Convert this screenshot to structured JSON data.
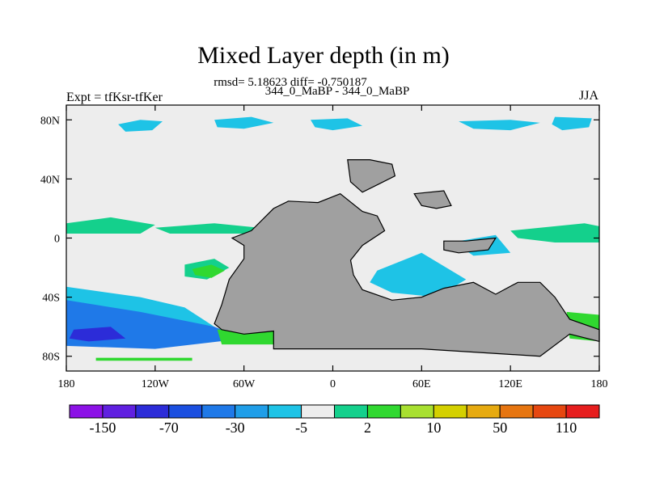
{
  "chart_data": {
    "type": "heatmap",
    "title": "Mixed Layer depth (in m)",
    "stats": "rmsd= 5.18623 diff= -0.750187",
    "subtitle": "344_0_MaBP - 344_0_MaBP",
    "left_label": "Expt = tfKsr-tfKer",
    "right_label": "JJA",
    "x_range": [
      -180,
      180
    ],
    "y_range": [
      -90,
      90
    ],
    "x_ticks": [
      {
        "value": -180,
        "label": "180"
      },
      {
        "value": -120,
        "label": "120W"
      },
      {
        "value": -60,
        "label": "60W"
      },
      {
        "value": 0,
        "label": "0"
      },
      {
        "value": 60,
        "label": "60E"
      },
      {
        "value": 120,
        "label": "120E"
      },
      {
        "value": 180,
        "label": "180"
      }
    ],
    "y_ticks": [
      {
        "value": 80,
        "label": "80N"
      },
      {
        "value": 40,
        "label": "40N"
      },
      {
        "value": 0,
        "label": "0"
      },
      {
        "value": -40,
        "label": "40S"
      },
      {
        "value": -80,
        "label": "80S"
      }
    ],
    "colorbar": {
      "colors": [
        "#8c12e6",
        "#6020e0",
        "#2c2cd8",
        "#1b4fe0",
        "#1f79e8",
        "#209ee8",
        "#1ec3e6",
        "#ededed",
        "#14d08c",
        "#30d830",
        "#a8e030",
        "#d4d000",
        "#e6aa10",
        "#e67510",
        "#e64710",
        "#e61e1e"
      ],
      "labels": [
        {
          "boundary": 1,
          "text": "-150"
        },
        {
          "boundary": 3,
          "text": "-70"
        },
        {
          "boundary": 5,
          "text": "-30"
        },
        {
          "boundary": 7,
          "text": "-5"
        },
        {
          "boundary": 9,
          "text": "2"
        },
        {
          "boundary": 11,
          "text": "10"
        },
        {
          "boundary": 13,
          "text": "50"
        },
        {
          "boundary": 15,
          "text": "110"
        }
      ]
    },
    "background_value": "2",
    "land_color": "#a0a0a0",
    "regions": [
      {
        "value": "-5",
        "color": "#1ec3e6",
        "lonlat": [
          [
            -145,
            77
          ],
          [
            -130,
            80
          ],
          [
            -115,
            79
          ],
          [
            -122,
            73
          ],
          [
            -140,
            72
          ]
        ]
      },
      {
        "value": "-5",
        "color": "#1ec3e6",
        "lonlat": [
          [
            -80,
            80
          ],
          [
            -55,
            82
          ],
          [
            -40,
            78
          ],
          [
            -60,
            74
          ],
          [
            -78,
            75
          ]
        ]
      },
      {
        "value": "-5",
        "color": "#1ec3e6",
        "lonlat": [
          [
            -15,
            80
          ],
          [
            10,
            81
          ],
          [
            20,
            76
          ],
          [
            0,
            73
          ],
          [
            -12,
            75
          ]
        ]
      },
      {
        "value": "-5",
        "color": "#1ec3e6",
        "lonlat": [
          [
            85,
            79
          ],
          [
            120,
            80
          ],
          [
            140,
            78
          ],
          [
            120,
            73
          ],
          [
            95,
            74
          ]
        ]
      },
      {
        "value": "-5",
        "color": "#1ec3e6",
        "lonlat": [
          [
            150,
            82
          ],
          [
            175,
            81
          ],
          [
            173,
            75
          ],
          [
            155,
            73
          ],
          [
            148,
            77
          ]
        ]
      },
      {
        "value": "2",
        "color": "#14d08c",
        "lonlat": [
          [
            -180,
            10
          ],
          [
            -150,
            14
          ],
          [
            -120,
            9
          ],
          [
            -130,
            3
          ],
          [
            -180,
            3
          ]
        ]
      },
      {
        "value": "2",
        "color": "#14d08c",
        "lonlat": [
          [
            -120,
            7
          ],
          [
            -80,
            10
          ],
          [
            -40,
            6
          ],
          [
            -60,
            3
          ],
          [
            -110,
            3
          ]
        ]
      },
      {
        "value": "2",
        "color": "#14d08c",
        "lonlat": [
          [
            120,
            5
          ],
          [
            170,
            10
          ],
          [
            180,
            8
          ],
          [
            180,
            -3
          ],
          [
            150,
            -3
          ],
          [
            125,
            0
          ]
        ]
      },
      {
        "value": "2",
        "color": "#14d08c",
        "lonlat": [
          [
            -100,
            -18
          ],
          [
            -80,
            -14
          ],
          [
            -70,
            -20
          ],
          [
            -85,
            -28
          ],
          [
            -100,
            -26
          ]
        ]
      },
      {
        "value": "10",
        "color": "#30d830",
        "lonlat": [
          [
            -95,
            -21
          ],
          [
            -82,
            -18
          ],
          [
            -73,
            -22
          ],
          [
            -82,
            -27
          ],
          [
            -93,
            -25
          ]
        ]
      },
      {
        "value": "-5",
        "color": "#1ec3e6",
        "lonlat": [
          [
            85,
            -2
          ],
          [
            110,
            2
          ],
          [
            120,
            -10
          ],
          [
            95,
            -12
          ],
          [
            85,
            -5
          ]
        ]
      },
      {
        "value": "-5",
        "color": "#1ec3e6",
        "lonlat": [
          [
            30,
            -22
          ],
          [
            60,
            -10
          ],
          [
            90,
            -28
          ],
          [
            70,
            -40
          ],
          [
            40,
            -37
          ],
          [
            25,
            -30
          ]
        ]
      },
      {
        "value": "-30",
        "color": "#1f79e8",
        "lonlat": [
          [
            -180,
            -40
          ],
          [
            -130,
            -45
          ],
          [
            -80,
            -60
          ],
          [
            -60,
            -68
          ],
          [
            -120,
            -75
          ],
          [
            -180,
            -73
          ]
        ]
      },
      {
        "value": "-5",
        "color": "#1ec3e6",
        "lonlat": [
          [
            -180,
            -33
          ],
          [
            -130,
            -40
          ],
          [
            -100,
            -47
          ],
          [
            -80,
            -60
          ],
          [
            -130,
            -50
          ],
          [
            -180,
            -42
          ]
        ]
      },
      {
        "value": "-70",
        "color": "#2c2cd8",
        "lonlat": [
          [
            -175,
            -62
          ],
          [
            -150,
            -60
          ],
          [
            -140,
            -68
          ],
          [
            -165,
            -70
          ],
          [
            -178,
            -68
          ]
        ]
      },
      {
        "value": "10",
        "color": "#30d830",
        "lonlat": [
          [
            -78,
            -62
          ],
          [
            -30,
            -62
          ],
          [
            -30,
            -72
          ],
          [
            -75,
            -72
          ]
        ]
      },
      {
        "value": "10",
        "color": "#30d830",
        "lonlat": [
          [
            158,
            -50
          ],
          [
            180,
            -52
          ],
          [
            180,
            -70
          ],
          [
            160,
            -68
          ]
        ]
      },
      {
        "value": "10",
        "color": "#30d830",
        "lonlat": [
          [
            -160,
            -83
          ],
          [
            -95,
            -83
          ],
          [
            -95,
            -81
          ],
          [
            -160,
            -81
          ]
        ]
      }
    ],
    "land": [
      {
        "name": "south-america-africa",
        "lonlat": [
          [
            -80,
            -58
          ],
          [
            -75,
            -45
          ],
          [
            -70,
            -28
          ],
          [
            -60,
            -14
          ],
          [
            -60,
            -5
          ],
          [
            -68,
            0
          ],
          [
            -55,
            5
          ],
          [
            -40,
            20
          ],
          [
            -30,
            25
          ],
          [
            -10,
            24
          ],
          [
            5,
            30
          ],
          [
            20,
            18
          ],
          [
            30,
            15
          ],
          [
            35,
            5
          ],
          [
            20,
            -5
          ],
          [
            12,
            -15
          ],
          [
            14,
            -25
          ],
          [
            20,
            -35
          ],
          [
            40,
            -42
          ],
          [
            60,
            -40
          ],
          [
            75,
            -34
          ],
          [
            95,
            -30
          ],
          [
            110,
            -38
          ],
          [
            125,
            -30
          ],
          [
            140,
            -30
          ],
          [
            150,
            -40
          ],
          [
            160,
            -55
          ],
          [
            180,
            -62
          ],
          [
            180,
            -70
          ],
          [
            160,
            -65
          ],
          [
            140,
            -80
          ],
          [
            60,
            -75
          ],
          [
            -40,
            -75
          ],
          [
            -40,
            -63
          ],
          [
            -60,
            -65
          ],
          [
            -75,
            -62
          ]
        ]
      },
      {
        "name": "northern-block",
        "lonlat": [
          [
            10,
            53
          ],
          [
            25,
            53
          ],
          [
            40,
            50
          ],
          [
            42,
            42
          ],
          [
            30,
            36
          ],
          [
            20,
            31
          ],
          [
            12,
            38
          ]
        ]
      },
      {
        "name": "east-asia-block",
        "lonlat": [
          [
            55,
            30
          ],
          [
            75,
            32
          ],
          [
            80,
            22
          ],
          [
            70,
            20
          ],
          [
            60,
            22
          ]
        ]
      },
      {
        "name": "maritime-block",
        "lonlat": [
          [
            75,
            -2
          ],
          [
            90,
            -2
          ],
          [
            110,
            0
          ],
          [
            105,
            -8
          ],
          [
            85,
            -10
          ],
          [
            75,
            -8
          ]
        ]
      }
    ]
  }
}
